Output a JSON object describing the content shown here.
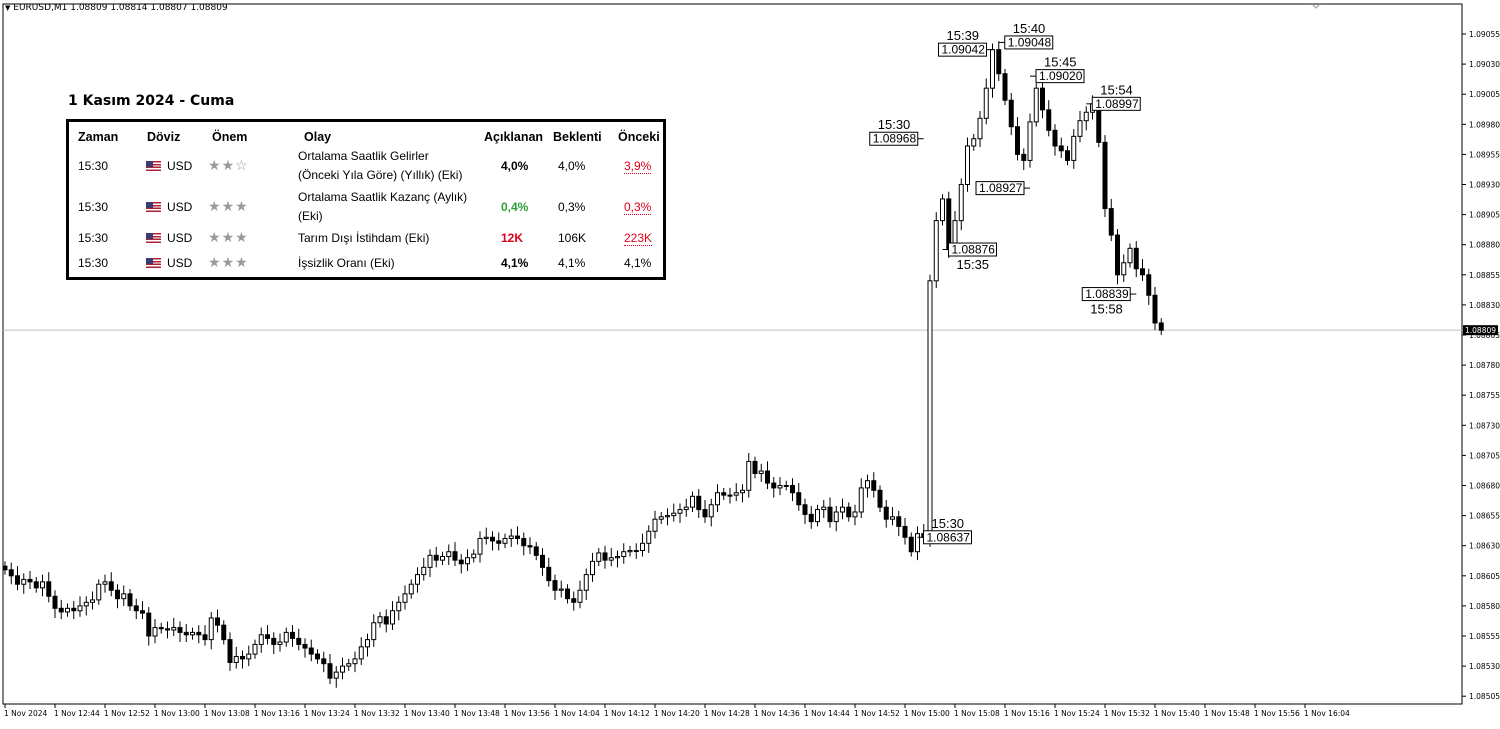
{
  "header": {
    "symbol_line": "EURUSD,M1  1.08809 1.08814 1.08807 1.08809"
  },
  "news": {
    "title": "1 Kasım 2024 - Cuma",
    "columns": [
      "Zaman",
      "Döviz",
      "Önem",
      "Olay",
      "Açıklanan",
      "Beklenti",
      "Önceki"
    ],
    "rows": [
      {
        "time": "15:30",
        "currency": "USD",
        "importance": 2,
        "event": "Ortalama Saatlik Gelirler (Önceki Yıla Göre) (Yıllık) (Eki)",
        "event_line1": "Ortalama Saatlik Gelirler",
        "event_line2": "(Önceki Yıla Göre) (Yıllık) (Eki)",
        "actual": "4,0%",
        "actual_tone": "neutral",
        "forecast": "4,0%",
        "previous": "3,9%",
        "previous_tone": "red"
      },
      {
        "time": "15:30",
        "currency": "USD",
        "importance": 3,
        "event": "Ortalama Saatlik Kazanç (Aylık) (Eki)",
        "event_line1": "Ortalama Saatlik Kazanç (Aylık)",
        "event_line2": "(Eki)",
        "actual": "0,4%",
        "actual_tone": "up",
        "forecast": "0,3%",
        "previous": "0,3%",
        "previous_tone": "red"
      },
      {
        "time": "15:30",
        "currency": "USD",
        "importance": 3,
        "event": "Tarım Dışı İstihdam (Eki)",
        "event_line1": "Tarım Dışı İstihdam (Eki)",
        "event_line2": "",
        "actual": "12K",
        "actual_tone": "down",
        "forecast": "106K",
        "previous": "223K",
        "previous_tone": "red"
      },
      {
        "time": "15:30",
        "currency": "USD",
        "importance": 3,
        "event": "İşsizlik Oranı (Eki)",
        "event_line1": "İşsizlik Oranı (Eki)",
        "event_line2": "",
        "actual": "4,1%",
        "actual_tone": "neutral",
        "forecast": "4,1%",
        "previous": "4,1%",
        "previous_tone": "neutral"
      }
    ]
  },
  "chart_data": {
    "type": "candlestick",
    "symbol": "EURUSD",
    "timeframe": "M1",
    "ylim": [
      1.0849,
      1.09075
    ],
    "y_ticks": [
      "1.09055",
      "1.09030",
      "1.09005",
      "1.08980",
      "1.08955",
      "1.08930",
      "1.08905",
      "1.08880",
      "1.08855",
      "1.08830",
      "1.08805",
      "1.08780",
      "1.08755",
      "1.08730",
      "1.08705",
      "1.08680",
      "1.08655",
      "1.08630",
      "1.08605",
      "1.08580",
      "1.08555",
      "1.08530",
      "1.08505"
    ],
    "x_ticks": [
      "1 Nov 2024",
      "1 Nov 12:44",
      "1 Nov 12:52",
      "1 Nov 13:00",
      "1 Nov 13:08",
      "1 Nov 13:16",
      "1 Nov 13:24",
      "1 Nov 13:32",
      "1 Nov 13:40",
      "1 Nov 13:48",
      "1 Nov 13:56",
      "1 Nov 14:04",
      "1 Nov 14:12",
      "1 Nov 14:20",
      "1 Nov 14:28",
      "1 Nov 14:36",
      "1 Nov 14:44",
      "1 Nov 14:52",
      "1 Nov 15:00",
      "1 Nov 15:08",
      "1 Nov 15:16",
      "1 Nov 15:24",
      "1 Nov 15:32",
      "1 Nov 15:40",
      "1 Nov 15:48",
      "1 Nov 15:56",
      "1 Nov 16:04"
    ],
    "current_price": "1.08809",
    "closes": [
      1.0861,
      1.08605,
      1.08598,
      1.08602,
      1.086,
      1.08595,
      1.086,
      1.08588,
      1.08578,
      1.08575,
      1.08578,
      1.08576,
      1.0858,
      1.08583,
      1.08585,
      1.08598,
      1.086,
      1.08593,
      1.08586,
      1.0859,
      1.0858,
      1.08576,
      1.08574,
      1.08555,
      1.08562,
      1.08561,
      1.0856,
      1.08562,
      1.08558,
      1.08556,
      1.08558,
      1.08556,
      1.08552,
      1.0857,
      1.08564,
      1.08552,
      1.08533,
      1.08538,
      1.08536,
      1.0854,
      1.08548,
      1.08556,
      1.08553,
      1.08548,
      1.0855,
      1.08558,
      1.08553,
      1.08548,
      1.08545,
      1.0854,
      1.08536,
      1.08532,
      1.0852,
      1.08525,
      1.0853,
      1.08532,
      1.08536,
      1.08546,
      1.08552,
      1.08566,
      1.08571,
      1.08565,
      1.08576,
      1.08583,
      1.0859,
      1.08598,
      1.08606,
      1.08612,
      1.08622,
      1.08618,
      1.08621,
      1.08625,
      1.08618,
      1.08615,
      1.0862,
      1.08623,
      1.08636,
      1.08637,
      1.08634,
      1.08632,
      1.08636,
      1.08638,
      1.08636,
      1.0863,
      1.08629,
      1.08622,
      1.08612,
      1.08601,
      1.08593,
      1.08594,
      1.08586,
      1.08583,
      1.08593,
      1.08606,
      1.08617,
      1.08624,
      1.08618,
      1.0862,
      1.08621,
      1.08625,
      1.08626,
      1.08626,
      1.08632,
      1.08642,
      1.08652,
      1.08654,
      1.08655,
      1.08657,
      1.0866,
      1.08662,
      1.08671,
      1.0866,
      1.08654,
      1.08664,
      1.08674,
      1.08672,
      1.08672,
      1.08674,
      1.08676,
      1.087,
      1.0869,
      1.08692,
      1.08682,
      1.08678,
      1.0868,
      1.0868,
      1.08674,
      1.08664,
      1.08656,
      1.0865,
      1.0866,
      1.08662,
      1.0865,
      1.08658,
      1.08662,
      1.08654,
      1.08658,
      1.08678,
      1.08684,
      1.08676,
      1.08662,
      1.08652,
      1.08654,
      1.08646,
      1.08637,
      1.08625,
      1.0864,
      1.08637,
      1.0885,
      1.089,
      1.08918,
      1.08876,
      1.089,
      1.0893,
      1.08962,
      1.08968,
      1.08985,
      1.0901,
      1.09042,
      1.09022,
      1.09,
      1.08978,
      1.08955,
      1.0895,
      1.08982,
      1.0901,
      1.08992,
      1.08975,
      1.08962,
      1.08958,
      1.0895,
      1.0897,
      1.08983,
      1.0899,
      1.08997,
      1.08965,
      1.0891,
      1.08888,
      1.08855,
      1.08865,
      1.08877,
      1.0886,
      1.08855,
      1.08838,
      1.08815,
      1.08809
    ],
    "price_labels": [
      {
        "time": "15:30",
        "price": "1.08968"
      },
      {
        "time": "15:39",
        "price": "1.09042"
      },
      {
        "time": "15:40",
        "price": "1.09048"
      },
      {
        "time": "15:45",
        "price": "1.09020"
      },
      {
        "time": "15:54",
        "price": "1.08997"
      },
      {
        "time": "",
        "price": "1.08927"
      },
      {
        "time": "15:35",
        "price": "1.08876"
      },
      {
        "time": "15:58",
        "price": "1.08839"
      },
      {
        "time": "15:30",
        "price": "1.08637"
      }
    ]
  }
}
